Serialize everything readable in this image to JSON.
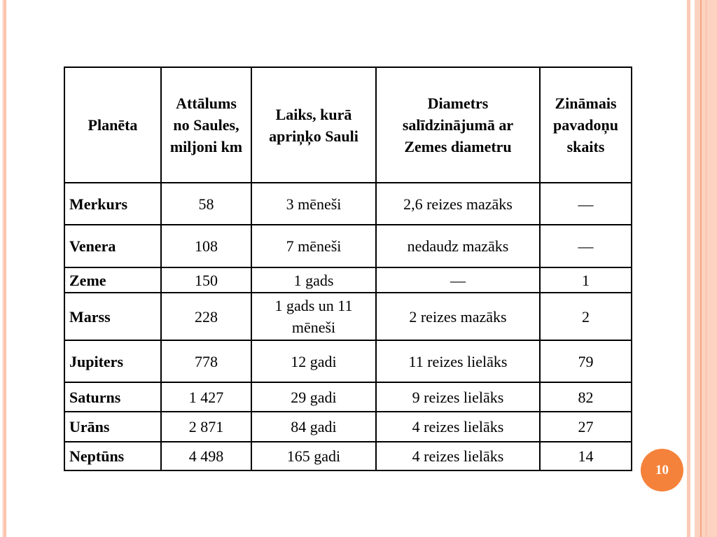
{
  "table": {
    "headers": [
      "Planēta",
      "Attālums no Saules, miljoni km",
      "Laiks, kurā apriņķo Sauli",
      "Diametrs salīdzinājumā ar Zemes diametru",
      "Zināmais pavadoņu skaits"
    ],
    "rows": [
      [
        "Merkurs",
        "58",
        "3 mēneši",
        "2,6 reizes mazāks",
        "—"
      ],
      [
        "Venera",
        "108",
        "7 mēneši",
        "nedaudz mazāks",
        "—"
      ],
      [
        "Zeme",
        "150",
        "1 gads",
        "—",
        "1"
      ],
      [
        "Marss",
        "228",
        "1 gads un 11 mēneši",
        "2 reizes mazāks",
        "2"
      ],
      [
        "Jupiters",
        "778",
        "12 gadi",
        "11 reizes lielāks",
        "79"
      ],
      [
        "Saturns",
        "1 427",
        "29 gadi",
        "9 reizes lielāks",
        "82"
      ],
      [
        "Urāns",
        "2 871",
        "84 gadi",
        "4 reizes lielāks",
        "27"
      ],
      [
        "Neptūns",
        "4 498",
        "165 gadi",
        "4 reizes lielāks",
        "14"
      ]
    ]
  },
  "page_number": "10",
  "colors": {
    "accent": "#f5823a",
    "stripe": "#fbc9b5"
  }
}
